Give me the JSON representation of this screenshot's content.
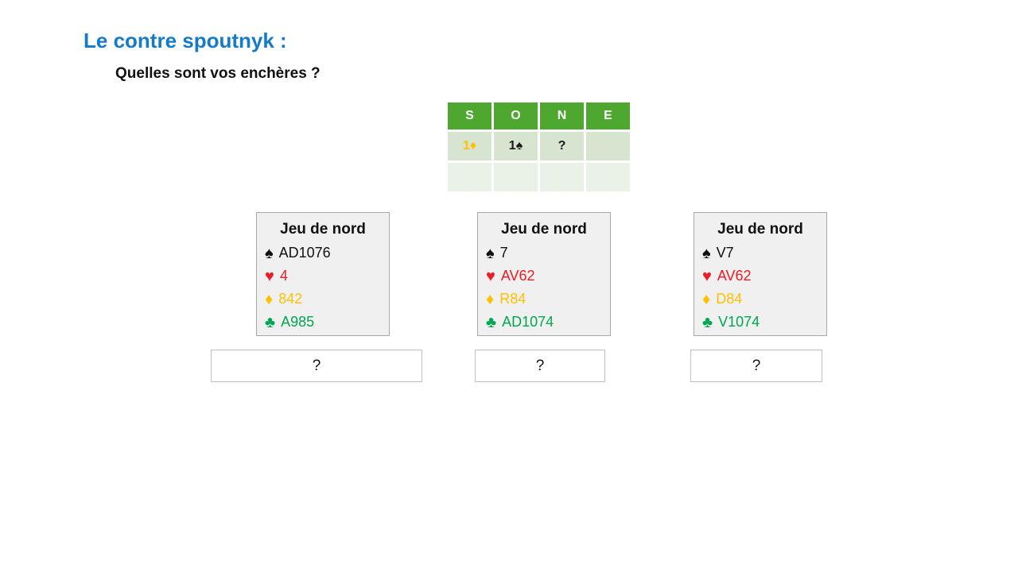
{
  "page": {
    "title": "Le contre spoutnyk :",
    "subtitle": "Quelles sont vos enchères ?"
  },
  "colors": {
    "title_blue": "#147BCB",
    "auction_header_green": "#4EA72E",
    "auction_row1_bg": "#D6E4D0",
    "auction_row2_bg": "#EAF1E6",
    "suit_spade_black": "#111111",
    "suit_heart_red": "#ED1C24",
    "suit_diamond_gold": "#FFC000",
    "suit_club_green": "#00A651"
  },
  "suit_symbols": {
    "spade": "♠",
    "heart": "♥",
    "diamond": "♦",
    "club": "♣"
  },
  "auction": {
    "headers": [
      "S",
      "O",
      "N",
      "E"
    ],
    "row1": {
      "s": "1♦",
      "o": "1♠",
      "n": "?",
      "e": ""
    },
    "row2": {
      "s": "",
      "o": "",
      "n": "",
      "e": ""
    }
  },
  "hands": [
    {
      "title": "Jeu de nord",
      "spades": "AD1076",
      "hearts": "4",
      "diamonds": "842",
      "clubs": "A985",
      "answer": "?"
    },
    {
      "title": "Jeu de nord",
      "spades": "7",
      "hearts": "AV62",
      "diamonds": "R84",
      "clubs": "AD1074",
      "answer": "?"
    },
    {
      "title": "Jeu de nord",
      "spades": "V7",
      "hearts": "AV62",
      "diamonds": "D84",
      "clubs": "V1074",
      "answer": "?"
    }
  ]
}
